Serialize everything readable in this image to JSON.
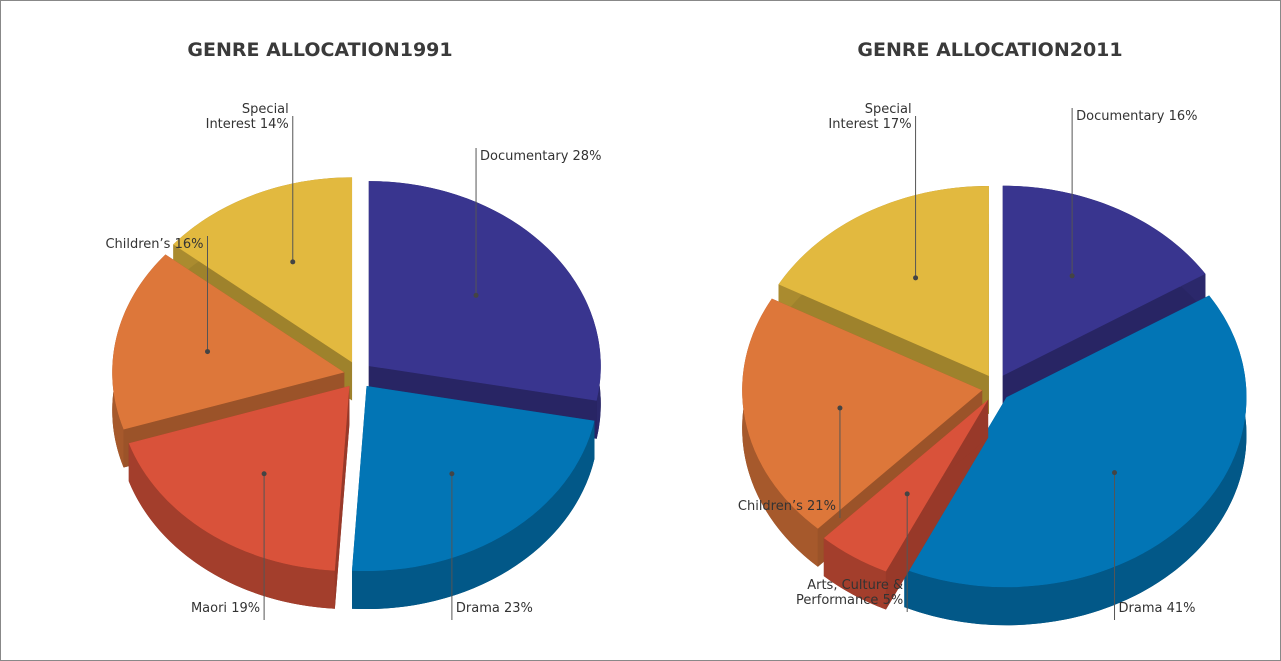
{
  "chart_data": [
    {
      "type": "pie",
      "title": "GENRE ALLOCATION1991",
      "categories": [
        "Documentary",
        "Drama",
        "Maori",
        "Children’s",
        "Special Interest"
      ],
      "values": [
        28,
        23,
        19,
        16,
        14
      ],
      "value_labels": [
        "28%",
        "23%",
        "19%",
        "16%",
        "14%"
      ],
      "colors": [
        "#39358f",
        "#0275b5",
        "#d9523a",
        "#dd773a",
        "#e2b93f"
      ]
    },
    {
      "type": "pie",
      "title": "GENRE ALLOCATION2011",
      "categories": [
        "Documentary",
        "Drama",
        "Arts, Culture & Performance",
        "Children’s",
        "Special Interest"
      ],
      "values": [
        16,
        41,
        5,
        21,
        17
      ],
      "value_labels": [
        "16%",
        "41%",
        "5%",
        "21%",
        "17%"
      ],
      "colors": [
        "#39358f",
        "#0275b5",
        "#d9523a",
        "#dd773a",
        "#e2b93f"
      ]
    }
  ]
}
